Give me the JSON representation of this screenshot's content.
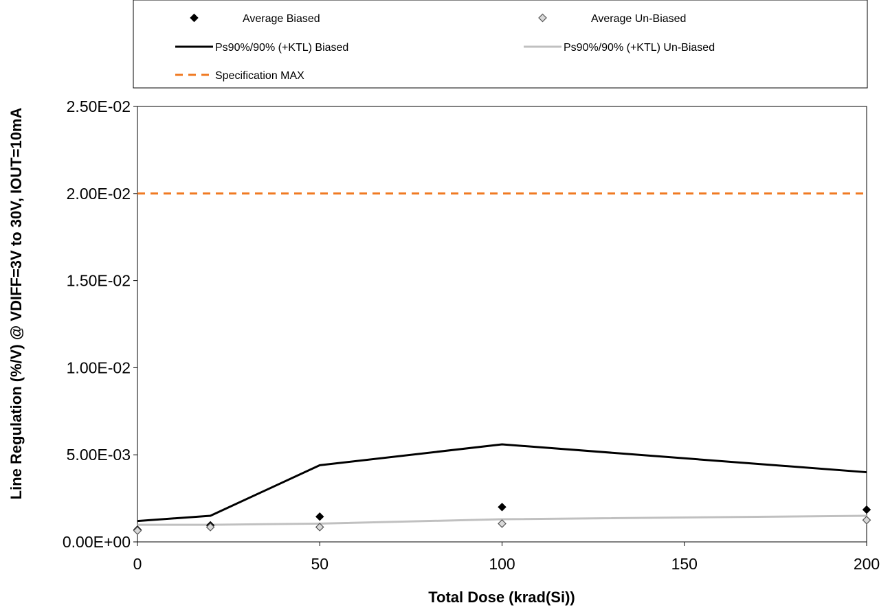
{
  "chart_data": {
    "type": "line",
    "title": "",
    "xlabel": "Total Dose (krad(Si))",
    "ylabel": "Line Regulation (%/V) @ VDIFF=3V to 30V, IOUT=10mA",
    "xlim": [
      0,
      200
    ],
    "ylim": [
      0,
      0.025
    ],
    "x_ticks": [
      0,
      50,
      100,
      150,
      200
    ],
    "x_tick_labels": [
      "0",
      "50",
      "100",
      "150",
      "200"
    ],
    "y_ticks": [
      0,
      0.005,
      0.01,
      0.015,
      0.02,
      0.025
    ],
    "y_tick_labels": [
      "0.00E+00",
      "5.00E-03",
      "1.00E-02",
      "1.50E-02",
      "2.00E-02",
      "2.50E-02"
    ],
    "grid": false,
    "legend_position": "top",
    "series": [
      {
        "name": "Average Biased",
        "kind": "markers",
        "marker": "diamond-filled",
        "color": "#000000",
        "x": [
          0,
          20,
          50,
          100,
          200
        ],
        "y": [
          0.0007,
          0.00095,
          0.00145,
          0.002,
          0.00185
        ]
      },
      {
        "name": "Average Un-Biased",
        "kind": "markers",
        "marker": "diamond-hollow",
        "color": "#9a9a9a",
        "x": [
          0,
          20,
          50,
          100,
          200
        ],
        "y": [
          0.00065,
          0.00085,
          0.00085,
          0.00105,
          0.00125
        ]
      },
      {
        "name": "Ps90%/90% (+KTL) Biased",
        "kind": "line",
        "color": "#000000",
        "x": [
          0,
          20,
          50,
          100,
          200
        ],
        "y": [
          0.0012,
          0.0015,
          0.0044,
          0.0056,
          0.004
        ]
      },
      {
        "name": "Ps90%/90% (+KTL) Un-Biased",
        "kind": "line",
        "color": "#c0c0c0",
        "x": [
          0,
          20,
          50,
          100,
          200
        ],
        "y": [
          0.00098,
          0.00098,
          0.00105,
          0.0013,
          0.0015
        ]
      },
      {
        "name": "Specification MAX",
        "kind": "dashed-line",
        "color": "#f07a22",
        "x": [
          0,
          200
        ],
        "y": [
          0.02,
          0.02
        ]
      }
    ]
  }
}
